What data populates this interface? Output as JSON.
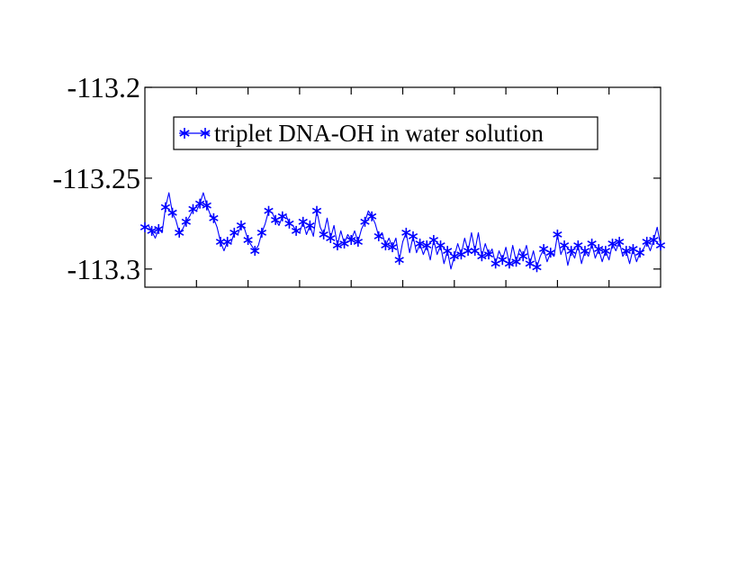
{
  "chart_data": {
    "type": "line",
    "title": "",
    "xlabel": "",
    "ylabel": "",
    "xlim": [
      0,
      300
    ],
    "ylim": [
      -113.31,
      -113.2
    ],
    "y_ticks": [
      -113.2,
      -113.25,
      -113.3
    ],
    "y_tick_labels": [
      "-113.2",
      "-113.25",
      "-113.3"
    ],
    "x_ticks": [
      30,
      60,
      90,
      120,
      150,
      180,
      210,
      240,
      270
    ],
    "x_tick_labels": [],
    "grid": false,
    "legend_position": "top-left",
    "series": [
      {
        "name": "triplet DNA-OH in water solution",
        "color": "#0000ff",
        "marker": "asterisk",
        "x": [
          0,
          2,
          4,
          6,
          8,
          10,
          12,
          14,
          16,
          18,
          20,
          22,
          24,
          26,
          28,
          30,
          32,
          34,
          36,
          38,
          40,
          42,
          44,
          46,
          48,
          50,
          52,
          54,
          56,
          58,
          60,
          62,
          64,
          66,
          68,
          70,
          72,
          74,
          76,
          78,
          80,
          82,
          84,
          86,
          88,
          90,
          92,
          94,
          96,
          98,
          100,
          102,
          104,
          106,
          108,
          110,
          112,
          114,
          116,
          118,
          120,
          122,
          124,
          126,
          128,
          130,
          132,
          134,
          136,
          138,
          140,
          142,
          144,
          146,
          148,
          150,
          152,
          154,
          156,
          158,
          160,
          162,
          164,
          166,
          168,
          170,
          172,
          174,
          176,
          178,
          180,
          182,
          184,
          186,
          188,
          190,
          192,
          194,
          196,
          198,
          200,
          202,
          204,
          206,
          208,
          210,
          212,
          214,
          216,
          218,
          220,
          222,
          224,
          226,
          228,
          230,
          232,
          234,
          236,
          238,
          240,
          242,
          244,
          246,
          248,
          250,
          252,
          254,
          256,
          258,
          260,
          262,
          264,
          266,
          268,
          270,
          272,
          274,
          276,
          278,
          280,
          282,
          284,
          286,
          288,
          290,
          292,
          294,
          296,
          298,
          300
        ],
        "y": [
          -113.277,
          -113.276,
          -113.279,
          -113.283,
          -113.278,
          -113.28,
          -113.266,
          -113.258,
          -113.269,
          -113.273,
          -113.28,
          -113.278,
          -113.274,
          -113.271,
          -113.267,
          -113.268,
          -113.264,
          -113.258,
          -113.265,
          -113.27,
          -113.272,
          -113.277,
          -113.285,
          -113.29,
          -113.285,
          -113.286,
          -113.28,
          -113.281,
          -113.276,
          -113.278,
          -113.284,
          -113.287,
          -113.29,
          -113.287,
          -113.28,
          -113.275,
          -113.268,
          -113.269,
          -113.273,
          -113.276,
          -113.271,
          -113.27,
          -113.275,
          -113.276,
          -113.279,
          -113.28,
          -113.274,
          -113.281,
          -113.276,
          -113.282,
          -113.268,
          -113.277,
          -113.281,
          -113.272,
          -113.283,
          -113.276,
          -113.287,
          -113.279,
          -113.286,
          -113.281,
          -113.284,
          -113.279,
          -113.285,
          -113.278,
          -113.274,
          -113.268,
          -113.271,
          -113.275,
          -113.282,
          -113.28,
          -113.287,
          -113.283,
          -113.288,
          -113.283,
          -113.295,
          -113.285,
          -113.28,
          -113.291,
          -113.282,
          -113.291,
          -113.286,
          -113.292,
          -113.287,
          -113.295,
          -113.284,
          -113.292,
          -113.287,
          -113.297,
          -113.29,
          -113.3,
          -113.293,
          -113.286,
          -113.292,
          -113.283,
          -113.29,
          -113.28,
          -113.29,
          -113.28,
          -113.293,
          -113.286,
          -113.292,
          -113.289,
          -113.297,
          -113.29,
          -113.295,
          -113.288,
          -113.297,
          -113.287,
          -113.296,
          -113.289,
          -113.293,
          -113.287,
          -113.297,
          -113.29,
          -113.299,
          -113.293,
          -113.289,
          -113.296,
          -113.291,
          -113.293,
          -113.281,
          -113.292,
          -113.287,
          -113.298,
          -113.29,
          -113.294,
          -113.287,
          -113.297,
          -113.29,
          -113.293,
          -113.286,
          -113.294,
          -113.289,
          -113.296,
          -113.29,
          -113.295,
          -113.286,
          -113.29,
          -113.285,
          -113.293,
          -113.29,
          -113.297,
          -113.289,
          -113.296,
          -113.291,
          -113.289,
          -113.285,
          -113.29,
          -113.284,
          -113.277,
          -113.287
        ]
      }
    ]
  }
}
